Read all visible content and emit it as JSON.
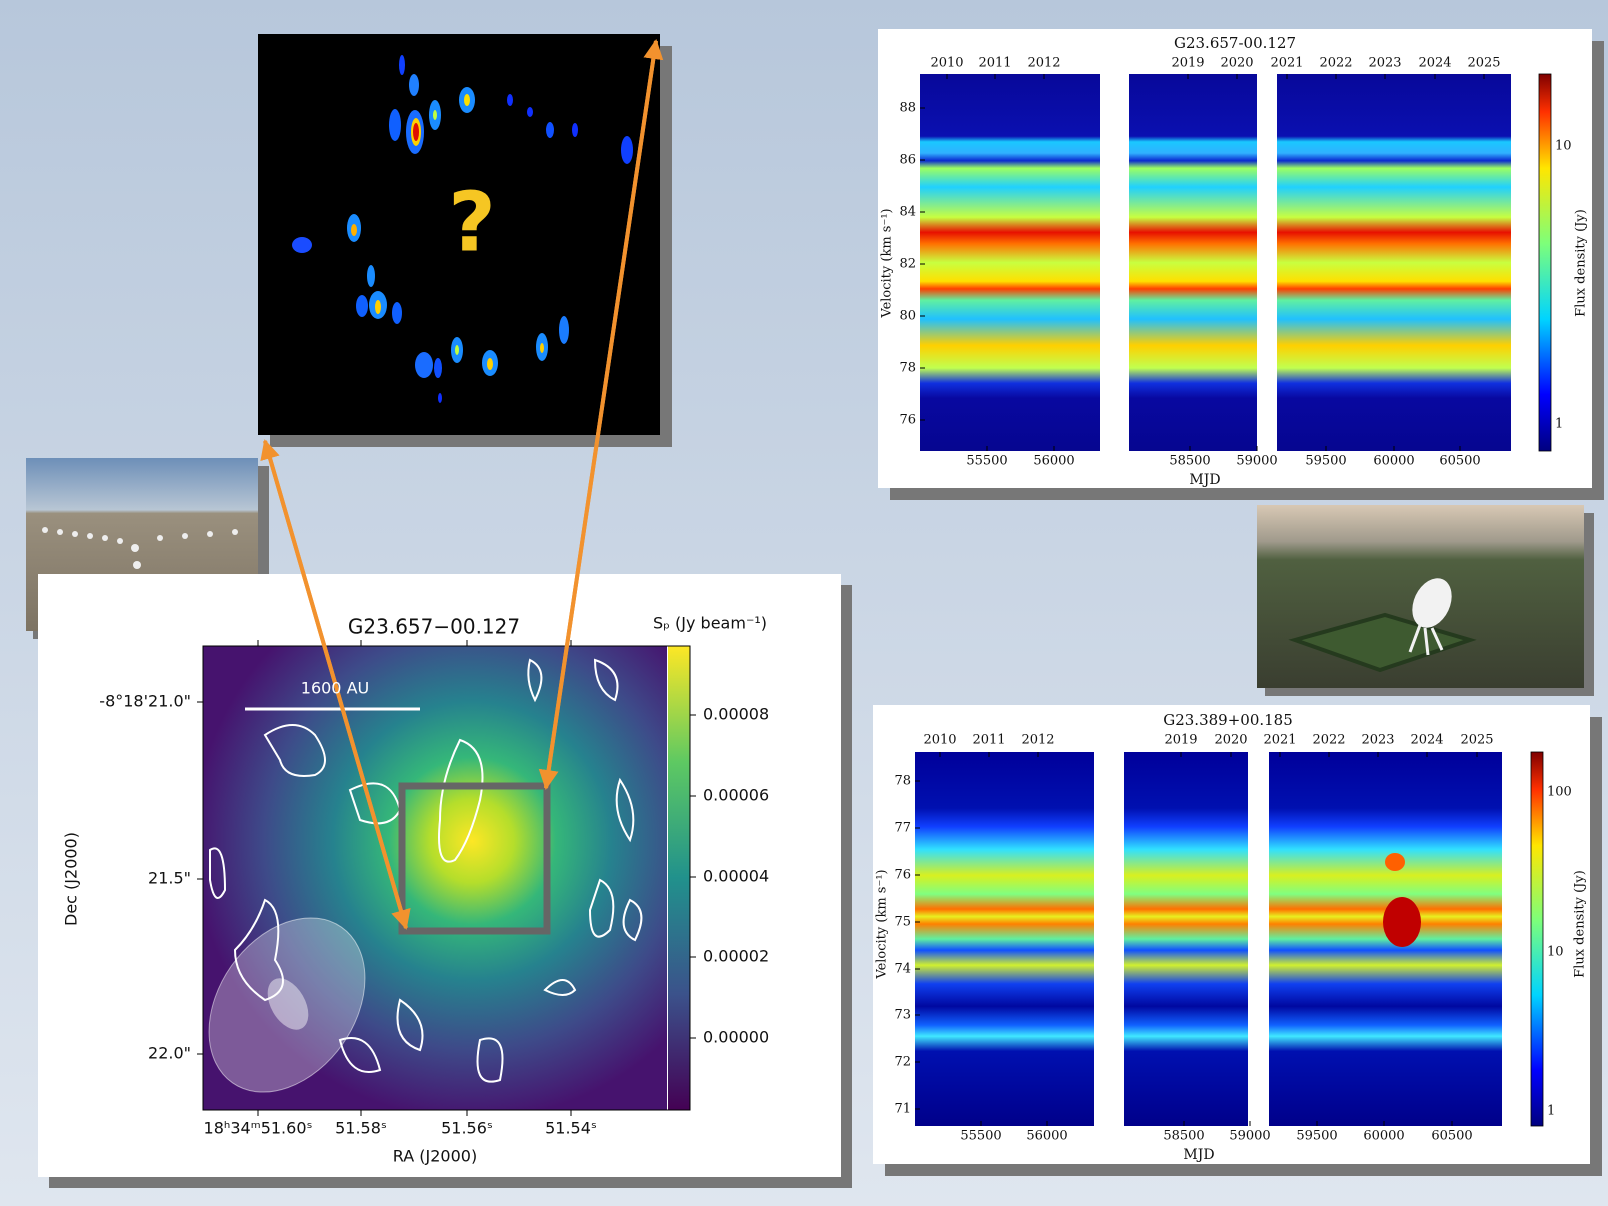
{
  "top_image": {
    "label": "?"
  },
  "map": {
    "title": "G23.657−00.127",
    "colorbar_label": "Sₚ (Jy beam⁻¹)",
    "scale_bar": "1600 AU",
    "colorbar_ticks": [
      "0.00008",
      "0.00006",
      "0.00004",
      "0.00002",
      "0.00000"
    ],
    "y_ticks": [
      "-8°18'21.0\"",
      "21.5\"",
      "22.0\""
    ],
    "x_ticks": [
      "18ʰ34ᵐ51.60ˢ",
      "51.58ˢ",
      "51.56ˢ",
      "51.54ˢ"
    ],
    "x_label": "RA (J2000)",
    "y_label": "Dec (J2000)"
  },
  "spectrum_top": {
    "title": "G23.657-00.127",
    "years": [
      "2010",
      "2011",
      "2012",
      "2019",
      "2020",
      "2021",
      "2022",
      "2023",
      "2024",
      "2025"
    ],
    "y_ticks": [
      "88",
      "86",
      "84",
      "82",
      "80",
      "78",
      "76"
    ],
    "x_ticks": [
      "55500",
      "56000",
      "58500",
      "59000",
      "59500",
      "60000",
      "60500"
    ],
    "x_label": "MJD",
    "y_label": "Velocity (km s⁻¹)",
    "colorbar_label": "Flux density (Jy)",
    "colorbar_ticks": [
      "10",
      "1"
    ]
  },
  "spectrum_bottom": {
    "title": "G23.389+00.185",
    "years": [
      "2010",
      "2011",
      "2012",
      "2019",
      "2020",
      "2021",
      "2022",
      "2023",
      "2024",
      "2025"
    ],
    "y_ticks": [
      "78",
      "77",
      "76",
      "75",
      "74",
      "73",
      "72",
      "71"
    ],
    "x_ticks": [
      "55500",
      "56000",
      "58500",
      "59000",
      "59500",
      "60000",
      "60500"
    ],
    "x_label": "MJD",
    "y_label": "Velocity (km s⁻¹)",
    "colorbar_label": "Flux density (Jy)",
    "colorbar_ticks": [
      "100",
      "10",
      "1"
    ]
  }
}
